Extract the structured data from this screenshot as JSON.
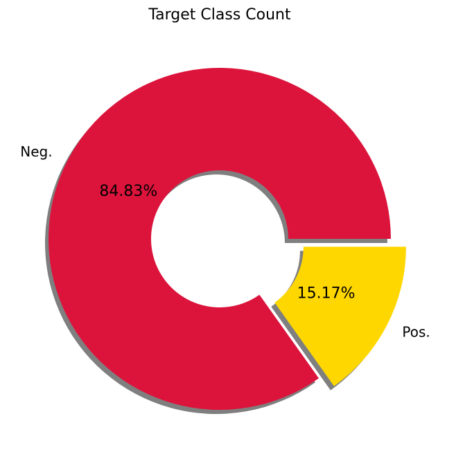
{
  "chart_data": {
    "type": "pie",
    "variant": "donut",
    "title": "Target Class Count",
    "categories": [
      "Neg.",
      "Pos."
    ],
    "values": [
      84.83,
      15.17
    ],
    "value_labels": [
      "84.83%",
      "15.17%"
    ],
    "colors": [
      "#dc143c",
      "#ffd700"
    ],
    "exploded": [
      false,
      true
    ],
    "shadow": true,
    "start_angle_deg": 0,
    "direction": "counterclockwise",
    "legend": "none"
  }
}
